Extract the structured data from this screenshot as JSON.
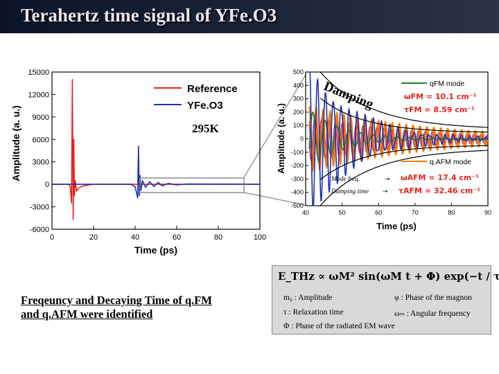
{
  "slide": {
    "title": "Terahertz time signal of YFe.O3",
    "caption_line1": "Freqeuncy and Decaying Time of q.FM",
    "caption_line2": "and q.AFM were identified"
  },
  "formula": {
    "main": "Eₐ ∝ ω²ᴹ sin(ωᴹt + Φ) exp(−t / τ)",
    "main_display": "E_THz ∝ ωM² sin(ωM t + Φ) exp(−t / τ)",
    "defs": [
      "m₀ : Amplitude",
      "φ : Phase of the magnon",
      "τ : Relaxation time",
      "ωₘ : Angular frequency",
      "Φ : Phase of the radiated EM wave"
    ]
  },
  "colors": {
    "reference": "#e8221e",
    "yfeo3": "#1d2fb4",
    "qfm": "#2e7d32",
    "qafm": "#f57c00",
    "accent": "#c0392b"
  },
  "chart_data": [
    {
      "type": "line",
      "xlabel": "Time (ps)",
      "ylabel": "Amplitude (a. u.)",
      "xlim": [
        0,
        100
      ],
      "ylim": [
        -6000,
        15000
      ],
      "x_ticks": [
        "0",
        "20",
        "40",
        "60",
        "80",
        "100"
      ],
      "y_ticks": [
        "15000",
        "12000",
        "9000",
        "6000",
        "3000",
        "0",
        "-3000",
        "-6000"
      ],
      "annotation": "295K",
      "legend_position": "top-right",
      "series": [
        {
          "name": "Reference",
          "color": "#e8221e",
          "x": [
            0,
            8,
            8.8,
            9.4,
            9.8,
            10.2,
            10.5,
            10.8,
            11.2,
            11.8,
            12.5,
            14,
            16,
            20,
            100
          ],
          "y": [
            0,
            0,
            -300,
            -2500,
            14000,
            -4700,
            6000,
            -1500,
            500,
            -900,
            -600,
            -300,
            -150,
            0,
            0
          ]
        },
        {
          "name": "YFe.O3",
          "color": "#1d2fb4",
          "x": [
            0,
            38,
            40,
            41.2,
            41.6,
            42.0,
            42.3,
            42.8,
            43.5,
            45,
            47,
            49,
            51,
            53,
            56,
            60,
            65,
            100
          ],
          "y": [
            0,
            0,
            -300,
            -1800,
            5100,
            -1500,
            1200,
            -800,
            500,
            -400,
            350,
            -300,
            250,
            -200,
            120,
            -80,
            40,
            0
          ]
        }
      ]
    },
    {
      "type": "line",
      "xlabel": "Time (ps)",
      "ylabel": "Amplitude (a. u.)",
      "xlim": [
        40,
        90
      ],
      "ylim": [
        -500,
        500
      ],
      "x_ticks": [
        "40",
        "50",
        "60",
        "70",
        "80",
        "90"
      ],
      "y_ticks": [
        "500",
        "400",
        "300",
        "200",
        "100",
        "0",
        "-100",
        "-200",
        "-300",
        "-400",
        "-500"
      ],
      "annotations": [
        "Damping",
        "Mode freq.",
        "Damping time"
      ],
      "series": [
        {
          "name": "qFM mode",
          "freq_label": "ωFM = 10.1 cm⁻¹",
          "damping_label": "τFM = 8.59 cm⁻¹",
          "frequency_cm": 10.1,
          "damping": 8.59
        },
        {
          "name": "q.AFM mode",
          "freq_label": "ωAFM = 17.4 cm⁻¹",
          "damping_label": "τAFM = 32.46 cm⁻¹",
          "frequency_cm": 17.4,
          "damping": 32.46
        }
      ]
    }
  ]
}
